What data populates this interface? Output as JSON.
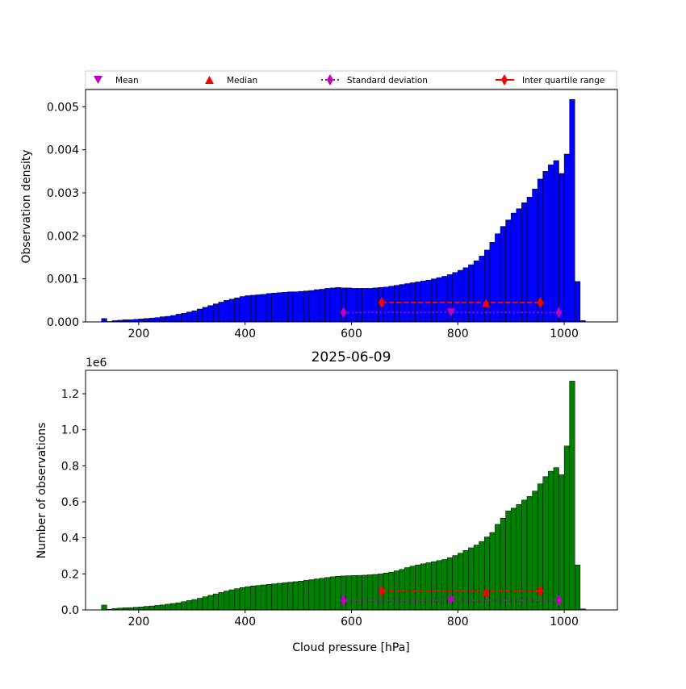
{
  "chart_data": [
    {
      "type": "bar",
      "panel": "density",
      "ylabel": "Observation density",
      "xlabel": "",
      "xlim": [
        100,
        1100
      ],
      "ylim": [
        0,
        0.0054
      ],
      "xticks": [
        200,
        400,
        600,
        800,
        1000
      ],
      "yticks": [
        0.0,
        0.001,
        0.002,
        0.003,
        0.004,
        0.005
      ],
      "ytick_labels": [
        "0.000",
        "0.001",
        "0.002",
        "0.003",
        "0.004",
        "0.005"
      ],
      "bar_color": "#0000ff",
      "bin_start": 130,
      "bin_width": 10,
      "values": [
        8e-05,
        1e-05,
        3e-05,
        4e-05,
        5e-05,
        5e-05,
        6e-05,
        7e-05,
        8e-05,
        9e-05,
        0.0001,
        0.00012,
        0.00013,
        0.00015,
        0.00018,
        0.0002,
        0.00023,
        0.00026,
        0.0003,
        0.00034,
        0.00038,
        0.00042,
        0.00046,
        0.0005,
        0.00053,
        0.00056,
        0.00059,
        0.00061,
        0.00062,
        0.00063,
        0.00064,
        0.00066,
        0.00067,
        0.00068,
        0.00069,
        0.0007,
        0.0007,
        0.00071,
        0.00072,
        0.00073,
        0.00075,
        0.00076,
        0.00078,
        0.00079,
        0.0008,
        0.00079,
        0.00079,
        0.00078,
        0.00078,
        0.00078,
        0.00078,
        0.00079,
        0.0008,
        0.00081,
        0.00083,
        0.00085,
        0.00087,
        0.00089,
        0.00091,
        0.00093,
        0.00095,
        0.00097,
        0.001,
        0.00103,
        0.00106,
        0.0011,
        0.00115,
        0.0012,
        0.00126,
        0.00133,
        0.00142,
        0.00153,
        0.00167,
        0.00185,
        0.00205,
        0.00222,
        0.00237,
        0.00253,
        0.00263,
        0.00277,
        0.0029,
        0.00309,
        0.00332,
        0.0035,
        0.00365,
        0.00375,
        0.00345,
        0.0039,
        0.00517,
        0.00094,
        3e-05
      ],
      "stats": {
        "mean": 787,
        "median": 853,
        "std_range": [
          585,
          990
        ],
        "iqr_range": [
          657,
          955
        ],
        "median_y": 0.00044,
        "iqr_y": 0.00045,
        "mean_y": 0.00022,
        "std_y": 0.00022
      }
    },
    {
      "type": "bar",
      "panel": "counts",
      "title": "2025-06-09",
      "ylabel": "Number of observations",
      "xlabel": "Cloud pressure [hPa]",
      "offset_label": "1e6",
      "xlim": [
        100,
        1100
      ],
      "ylim": [
        0,
        1.33
      ],
      "xticks": [
        200,
        400,
        600,
        800,
        1000
      ],
      "yticks": [
        0.0,
        0.2,
        0.4,
        0.6,
        0.8,
        1.0,
        1.2
      ],
      "ytick_labels": [
        "0.0",
        "0.2",
        "0.4",
        "0.6",
        "0.8",
        "1.0",
        "1.2"
      ],
      "bar_color": "#008000",
      "bin_start": 130,
      "bin_width": 10,
      "values_unit": "x1e6",
      "values": [
        0.027,
        0.004,
        0.008,
        0.01,
        0.012,
        0.013,
        0.015,
        0.017,
        0.02,
        0.022,
        0.025,
        0.028,
        0.032,
        0.036,
        0.04,
        0.046,
        0.052,
        0.058,
        0.065,
        0.073,
        0.081,
        0.089,
        0.097,
        0.105,
        0.112,
        0.118,
        0.124,
        0.129,
        0.133,
        0.136,
        0.139,
        0.142,
        0.145,
        0.148,
        0.151,
        0.154,
        0.157,
        0.16,
        0.164,
        0.168,
        0.172,
        0.176,
        0.18,
        0.184,
        0.187,
        0.189,
        0.19,
        0.191,
        0.192,
        0.193,
        0.195,
        0.197,
        0.2,
        0.205,
        0.21,
        0.217,
        0.225,
        0.235,
        0.243,
        0.25,
        0.256,
        0.262,
        0.268,
        0.274,
        0.28,
        0.29,
        0.302,
        0.315,
        0.33,
        0.345,
        0.36,
        0.38,
        0.405,
        0.43,
        0.475,
        0.51,
        0.55,
        0.565,
        0.585,
        0.61,
        0.63,
        0.66,
        0.7,
        0.74,
        0.77,
        0.79,
        0.75,
        0.91,
        1.27,
        0.25,
        0.006
      ],
      "stats": {
        "mean": 787,
        "median": 853,
        "std_range": [
          585,
          990
        ],
        "iqr_range": [
          657,
          955
        ],
        "median_y": 0.1,
        "iqr_y": 0.105,
        "mean_y": 0.055,
        "std_y": 0.053
      }
    }
  ],
  "legend": {
    "placement": "top",
    "items": [
      {
        "label": "Mean",
        "marker": "triangle-down",
        "color": "#bf00bf"
      },
      {
        "label": "Median",
        "marker": "triangle-up",
        "color": "#ff0000"
      },
      {
        "label": "Standard deviation",
        "marker": "diamond-dotted-line",
        "color": "#bf00bf"
      },
      {
        "label": "Inter quartile range",
        "marker": "diamond-solid-line",
        "color": "#ff0000"
      }
    ]
  },
  "colors": {
    "mean": "#bf00bf",
    "median": "#ff0000",
    "std": "#bf00bf",
    "iqr": "#ff0000"
  }
}
